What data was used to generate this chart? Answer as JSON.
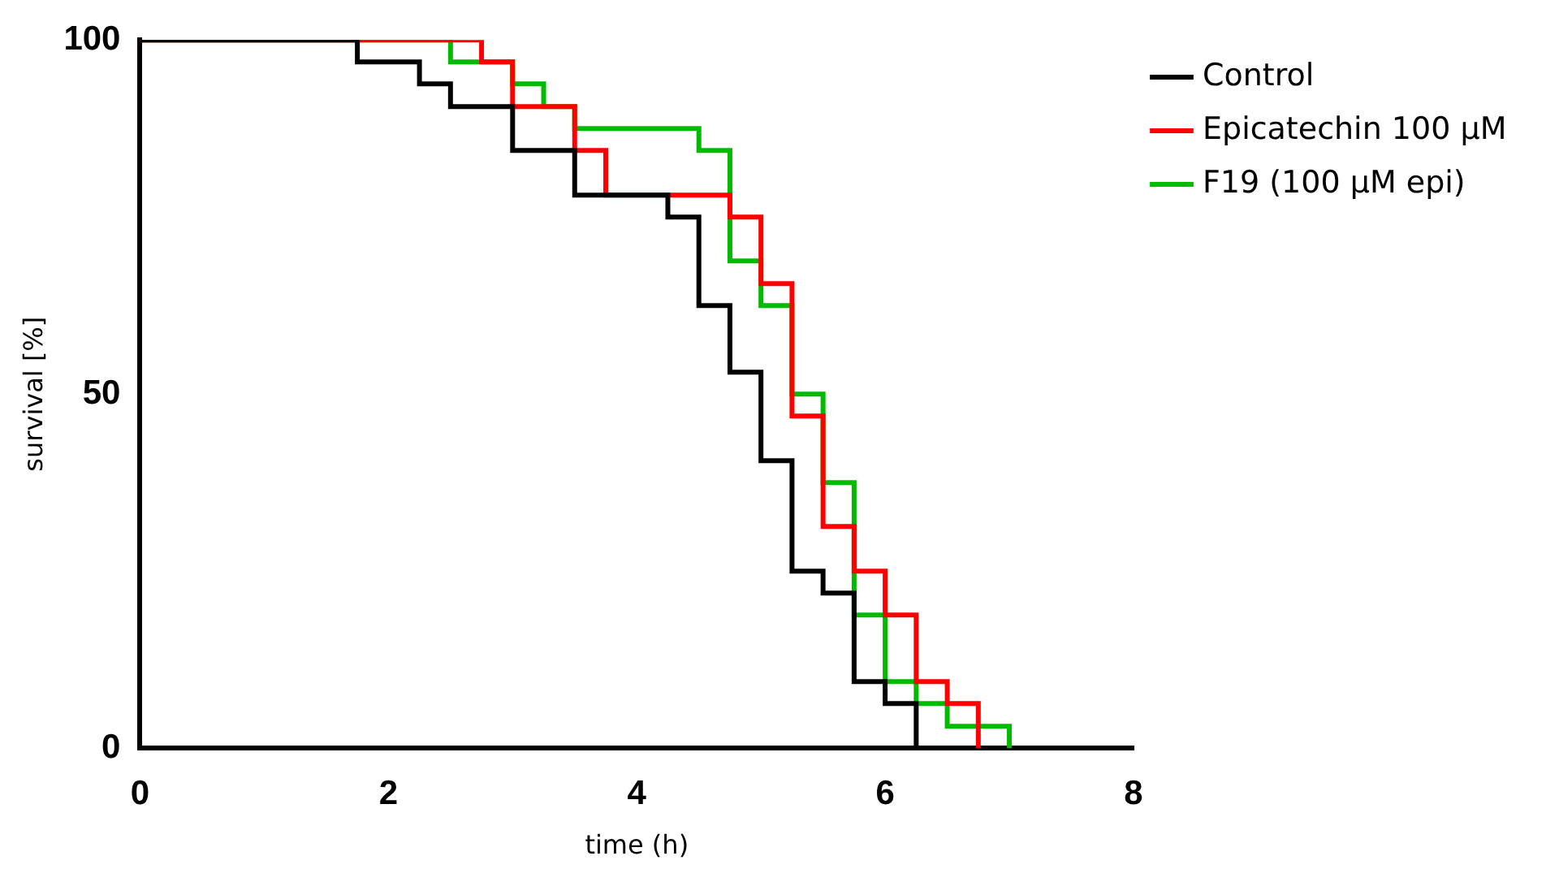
{
  "chart_data": {
    "type": "step",
    "xlabel": "time (h)",
    "ylabel": "survival [%]",
    "xlim": [
      0,
      8
    ],
    "xticks": [
      0,
      2,
      4,
      6,
      8
    ],
    "ylim": [
      0,
      100
    ],
    "yticks": [
      0,
      50,
      100
    ],
    "grid": false,
    "legend": "top right",
    "marker": "none",
    "series": [
      {
        "name": "Control",
        "color": "#000000",
        "x": [
          0,
          1.75,
          2.25,
          2.5,
          3,
          3.5,
          4.25,
          4.5,
          4.75,
          5,
          5.25,
          5.5,
          5.75,
          6,
          6.25
        ],
        "values": [
          100,
          96.9,
          93.8,
          90.6,
          84.4,
          78.1,
          75,
          62.5,
          53.1,
          40.6,
          25,
          21.9,
          9.4,
          6.3,
          0
        ]
      },
      {
        "name": "Epicatechin 100 µM",
        "color": "#ff0000",
        "x": [
          0,
          2.75,
          3,
          3.5,
          3.75,
          4.75,
          5,
          5.25,
          5.5,
          5.75,
          6,
          6.25,
          6.5,
          6.75
        ],
        "values": [
          100,
          96.9,
          90.6,
          84.4,
          78.1,
          75,
          65.6,
          46.9,
          31.3,
          25,
          18.8,
          9.4,
          6.3,
          0
        ]
      },
      {
        "name": "F19 (100 µM epi)",
        "color": "#00bb00",
        "x": [
          0,
          2.5,
          3,
          3.25,
          3.5,
          4.5,
          4.75,
          5,
          5.25,
          5.5,
          5.75,
          6,
          6.25,
          6.5,
          7
        ],
        "values": [
          100,
          96.9,
          93.8,
          90.6,
          87.5,
          84.4,
          68.8,
          62.5,
          50,
          37.5,
          18.8,
          9.4,
          6.3,
          3.1,
          0
        ]
      }
    ]
  }
}
